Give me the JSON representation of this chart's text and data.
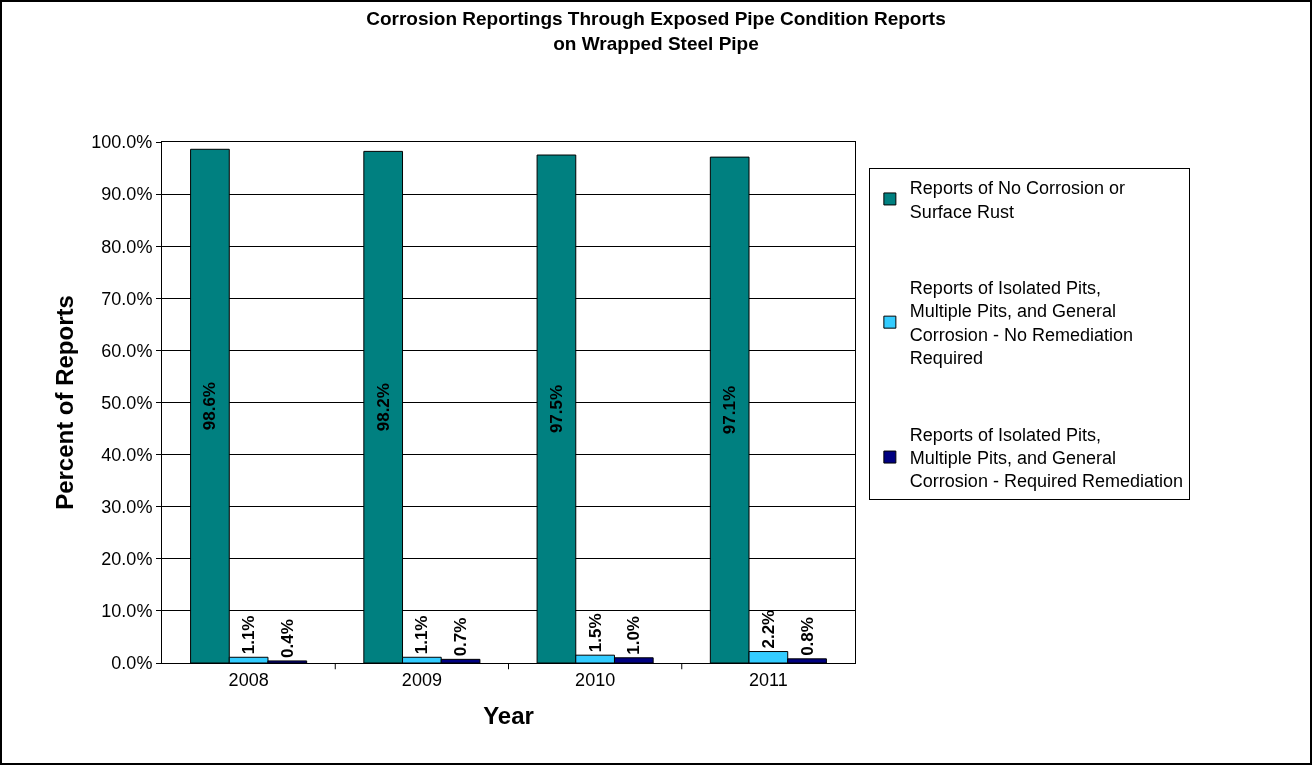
{
  "chart_data": {
    "type": "bar",
    "title": "Corrosion Reportings Through Exposed Pipe Condition Reports on Wrapped Steel Pipe",
    "xlabel": "Year",
    "ylabel": "Percent of Reports",
    "categories": [
      "2008",
      "2009",
      "2010",
      "2011"
    ],
    "series": [
      {
        "name": "Reports of No Corrosion or Surface Rust",
        "color": "#008080",
        "values": [
          98.6,
          98.2,
          97.5,
          97.1
        ],
        "value_labels": [
          "98.6%",
          "98.2%",
          "97.5%",
          "97.1%"
        ]
      },
      {
        "name": "Reports of Isolated Pits, Multiple Pits, and General Corrosion - No Remediation Required",
        "color": "#33ccff",
        "values": [
          1.1,
          1.1,
          1.5,
          2.2
        ],
        "value_labels": [
          "1.1%",
          "1.1%",
          "1.5%",
          "2.2%"
        ]
      },
      {
        "name": "Reports of Isolated Pits, Multiple Pits, and General Corrosion - Required Remediation",
        "color": "#000080",
        "values": [
          0.4,
          0.7,
          1.0,
          0.8
        ],
        "value_labels": [
          "0.4%",
          "0.7%",
          "1.0%",
          "0.8%"
        ]
      }
    ],
    "ylim": [
      0,
      100
    ],
    "yticks": [
      {
        "value": 0,
        "label": "0.0%"
      },
      {
        "value": 10,
        "label": "10.0%"
      },
      {
        "value": 20,
        "label": "20.0%"
      },
      {
        "value": 30,
        "label": "30.0%"
      },
      {
        "value": 40,
        "label": "40.0%"
      },
      {
        "value": 50,
        "label": "50.0%"
      },
      {
        "value": 60,
        "label": "60.0%"
      },
      {
        "value": 70,
        "label": "70.0%"
      },
      {
        "value": 80,
        "label": "80.0%"
      },
      {
        "value": 90,
        "label": "90.0%"
      },
      {
        "value": 100,
        "label": "100.0%"
      }
    ],
    "grid": "y",
    "legend": "right"
  }
}
